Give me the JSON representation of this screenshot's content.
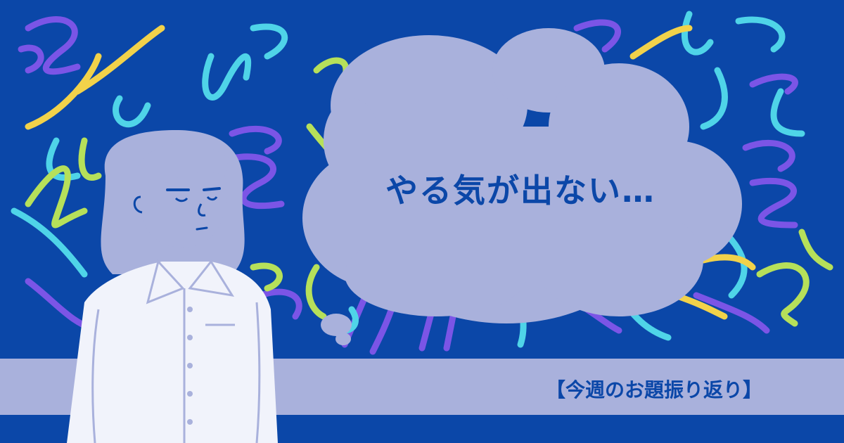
{
  "speech": {
    "text": "やる気が出ない…"
  },
  "banner": {
    "text": "【今週のお題振り返り】"
  },
  "colors": {
    "background": "#0b47a8",
    "bubble": "#a9b1dc",
    "banner": "#a9b1dc",
    "squiggle_purple": "#7b55e6",
    "squiggle_cyan": "#4fd4e8",
    "squiggle_yellow": "#f2d24a",
    "squiggle_lime": "#b6e05a",
    "person_hair": "#a9b1dc",
    "person_shirt": "#f1f3fb"
  },
  "icons": [
    "tired-person-illustration",
    "thought-bubble",
    "squiggle-lines"
  ]
}
